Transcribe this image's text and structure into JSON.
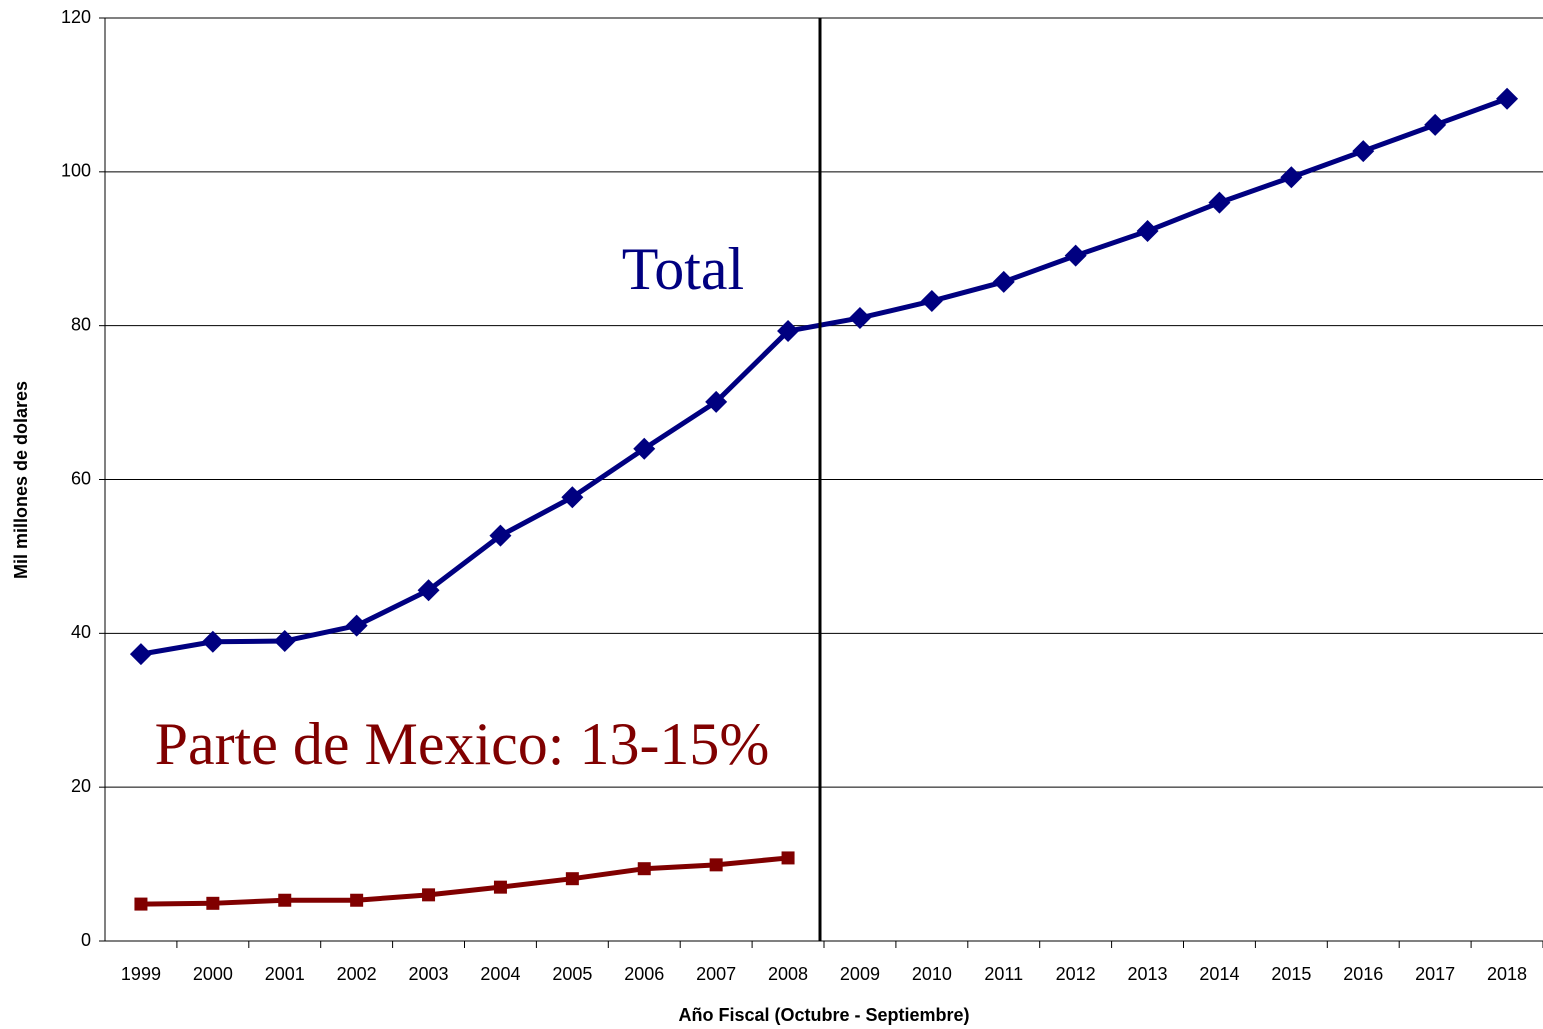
{
  "chart_data": {
    "type": "line",
    "xlabel": "Año Fiscal (Octubre - Septiembre)",
    "ylabel": "Mil millones de dolares",
    "categories": [
      "1999",
      "2000",
      "2001",
      "2002",
      "2003",
      "2004",
      "2005",
      "2006",
      "2007",
      "2008",
      "2009",
      "2010",
      "2011",
      "2012",
      "2013",
      "2014",
      "2015",
      "2016",
      "2017",
      "2018"
    ],
    "series": [
      {
        "name": "Total",
        "color": "#000080",
        "marker": "diamond",
        "values": [
          37.3,
          38.9,
          39.0,
          41.0,
          45.6,
          52.7,
          57.7,
          64.0,
          70.1,
          79.3,
          81.0,
          83.2,
          85.7,
          89.1,
          92.3,
          96.0,
          99.3,
          102.7,
          106.1,
          109.5
        ]
      },
      {
        "name": "Parte de Mexico: 13-15%",
        "color": "#800000",
        "marker": "square",
        "values": [
          4.8,
          4.9,
          5.3,
          5.3,
          6.0,
          7.0,
          8.1,
          9.4,
          9.9,
          10.8,
          null,
          null,
          null,
          null,
          null,
          null,
          null,
          null,
          null,
          null
        ]
      }
    ],
    "ylim": [
      0,
      120
    ],
    "yticks": [
      0,
      20,
      40,
      60,
      80,
      100,
      120
    ],
    "grid": true
  }
}
